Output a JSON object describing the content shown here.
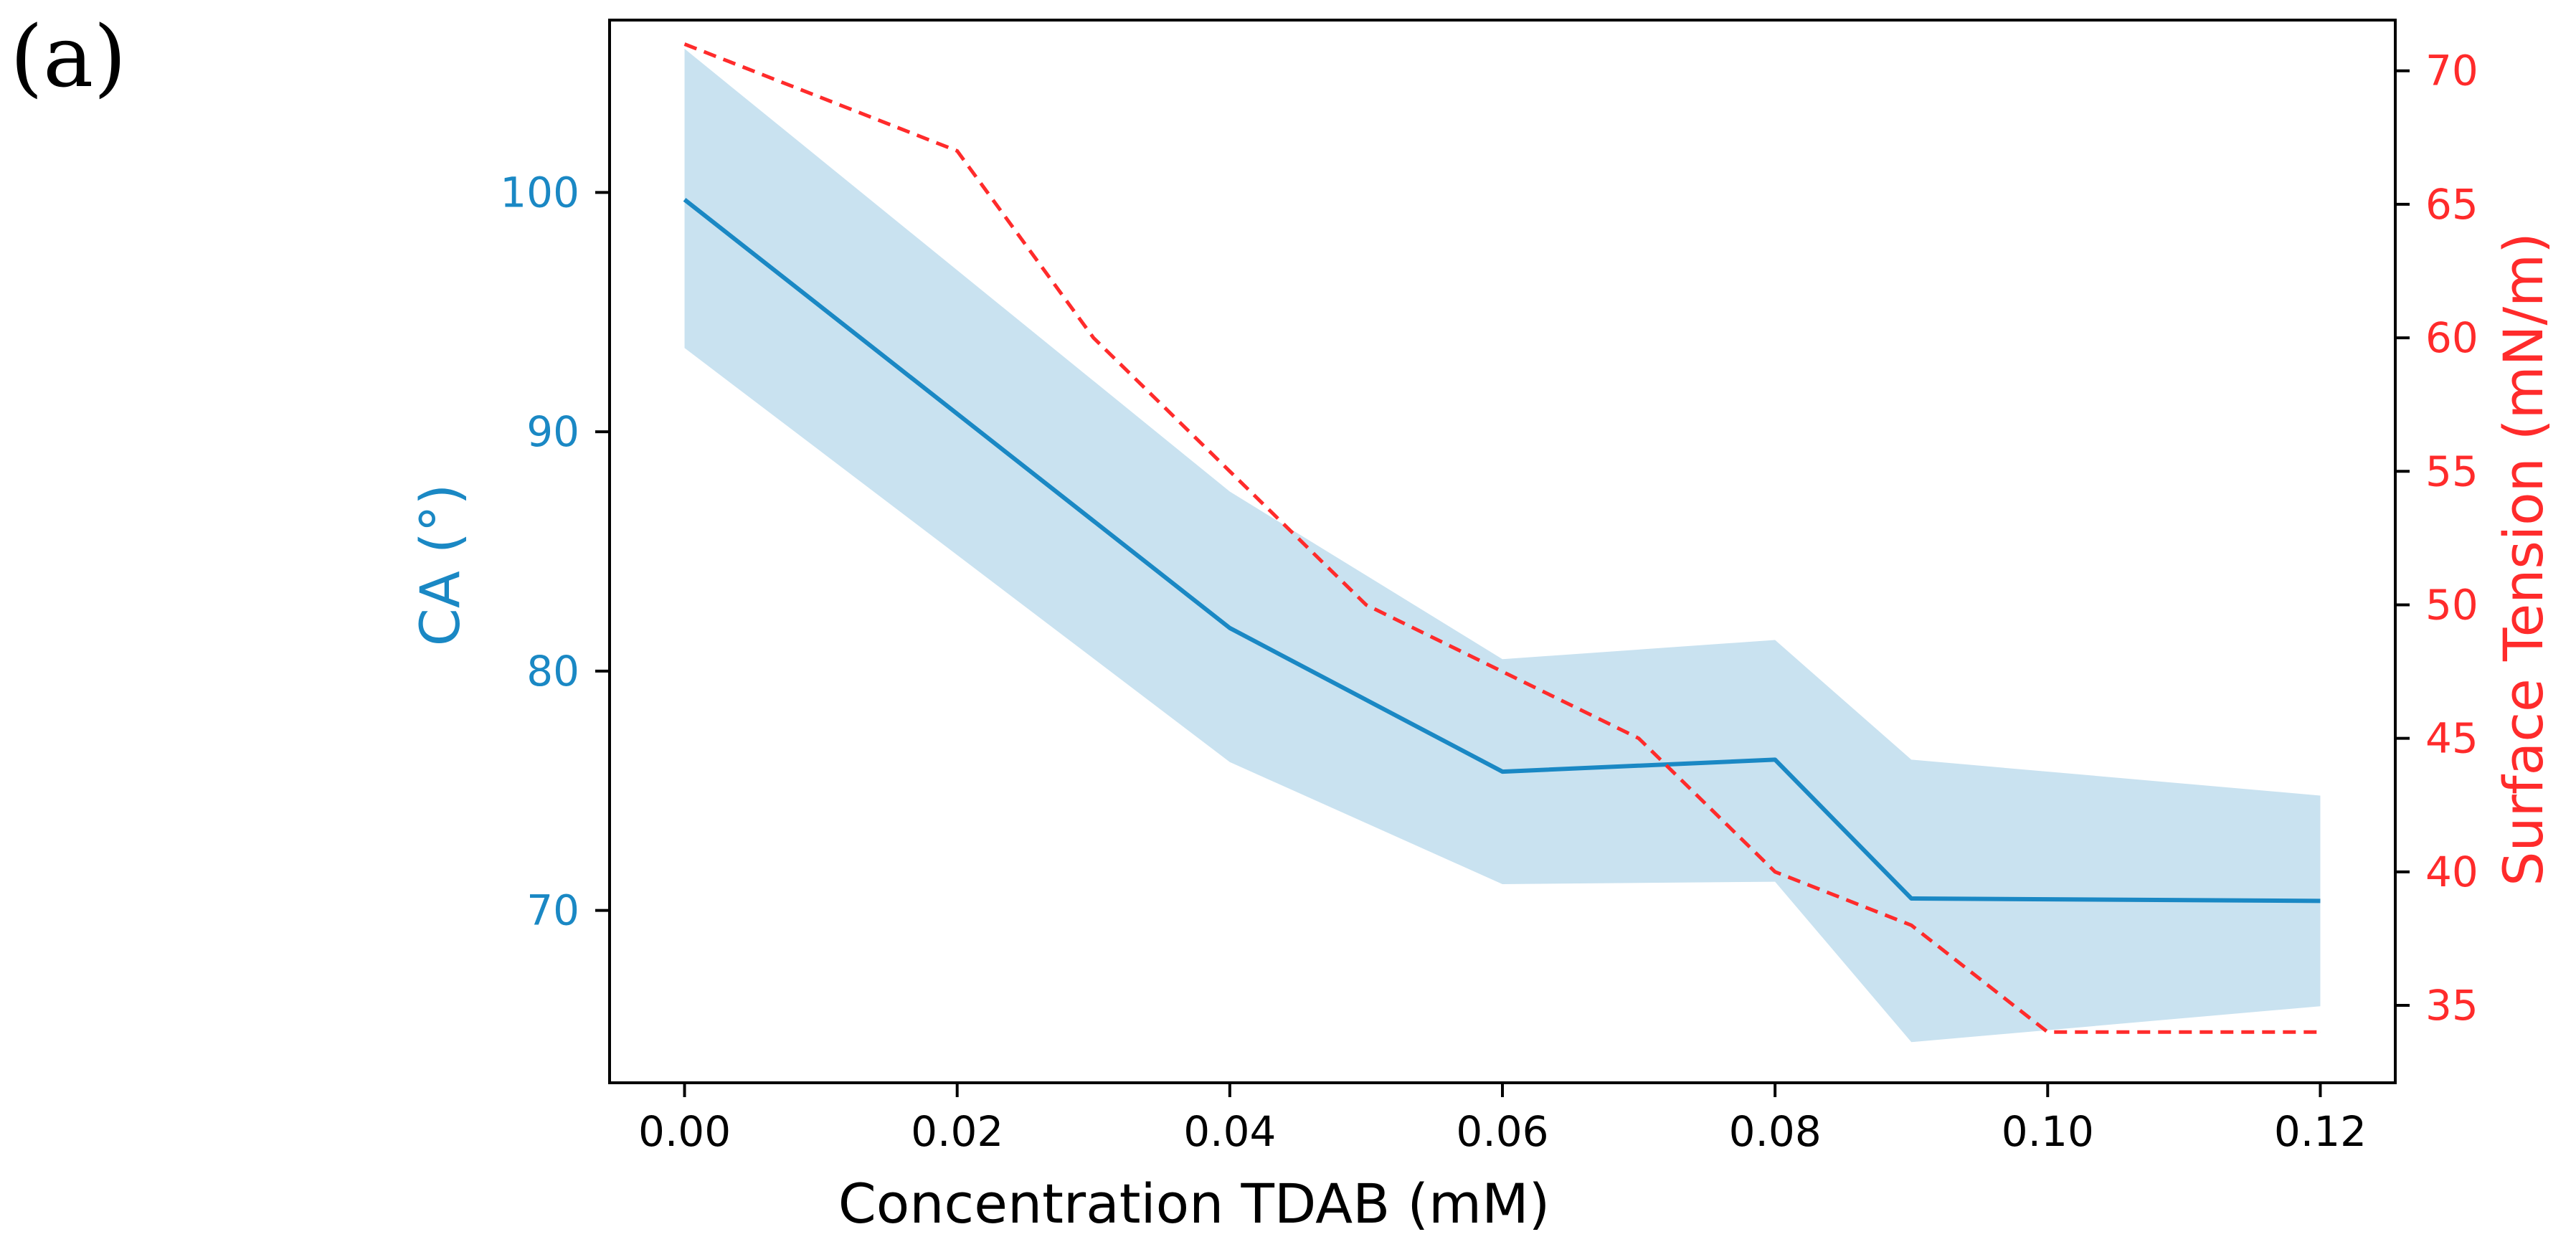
{
  "panel_label": "(a)",
  "colors": {
    "left": "#1a88c4",
    "band": "#c9e2f0",
    "right": "#ff2b2b",
    "axis": "#000000"
  },
  "chart_data": {
    "type": "line",
    "xlabel": "Concentration TDAB (mM)",
    "ylabel_left": "CA (°)",
    "ylabel_right": "Surface Tension (mN/m)",
    "xlim": [
      -0.0055,
      0.1255
    ],
    "ylim_left": [
      62.8,
      107.2
    ],
    "ylim_right": [
      32.1,
      71.9
    ],
    "xticks": [
      0.0,
      0.02,
      0.04,
      0.06,
      0.08,
      0.1,
      0.12
    ],
    "xtick_labels": [
      "0.00",
      "0.02",
      "0.04",
      "0.06",
      "0.08",
      "0.10",
      "0.12"
    ],
    "yticks_left": [
      70,
      80,
      90,
      100
    ],
    "yticks_left_labels": [
      "70",
      "80",
      "90",
      "100"
    ],
    "yticks_right": [
      35,
      40,
      45,
      50,
      55,
      60,
      65,
      70
    ],
    "yticks_right_labels": [
      "35",
      "40",
      "45",
      "50",
      "55",
      "60",
      "65",
      "70"
    ],
    "series": [
      {
        "name": "CA",
        "axis": "left",
        "style": "solid",
        "x": [
          0.0,
          0.04,
          0.06,
          0.08,
          0.09,
          0.12
        ],
        "y": [
          99.7,
          81.8,
          75.8,
          76.3,
          70.5,
          70.4
        ]
      },
      {
        "name": "CA band",
        "axis": "left",
        "style": "fill",
        "x": [
          0.0,
          0.04,
          0.06,
          0.08,
          0.09,
          0.12
        ],
        "upper": [
          106.0,
          87.5,
          80.5,
          81.3,
          76.3,
          74.8
        ],
        "lower": [
          93.5,
          76.2,
          71.1,
          71.2,
          64.5,
          66.0
        ]
      },
      {
        "name": "Surface Tension",
        "axis": "right",
        "style": "dashed",
        "x": [
          0.0,
          0.02,
          0.03,
          0.04,
          0.05,
          0.06,
          0.07,
          0.08,
          0.09,
          0.1,
          0.12
        ],
        "y": [
          71.0,
          67.0,
          60.0,
          55.0,
          50.0,
          47.5,
          45.0,
          40.0,
          38.0,
          34.0,
          34.0
        ]
      }
    ]
  }
}
